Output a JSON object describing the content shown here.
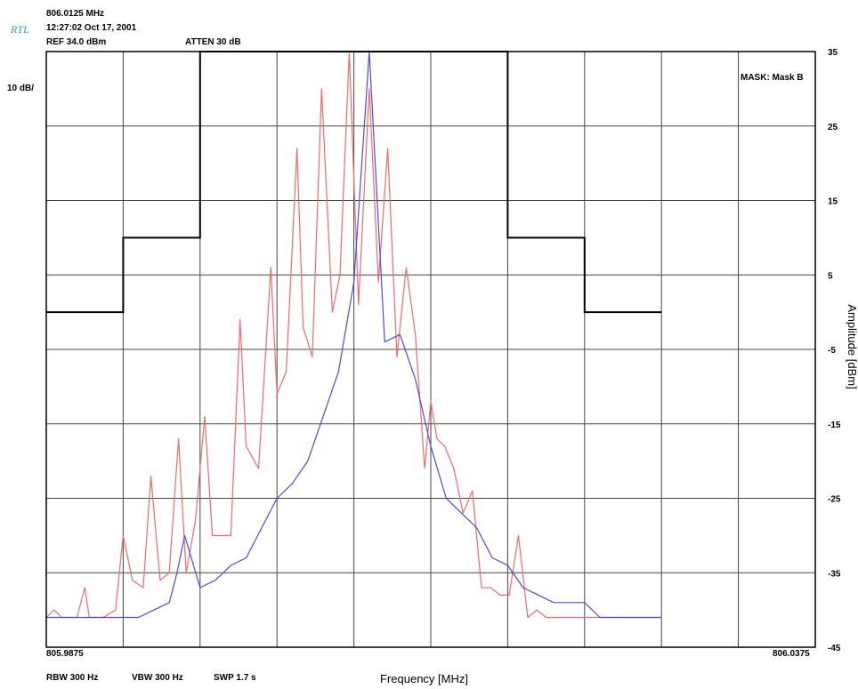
{
  "header": {
    "center_freq": "806.0125 MHz",
    "logo": "RTL",
    "datetime": "12:27:02 Oct 17, 2001",
    "ref": "REF 34.0 dBm",
    "atten": "ATTEN 30 dB",
    "scale": "10 dB/",
    "mask": "MASK: Mask B"
  },
  "footer": {
    "rbw": "RBW 300 Hz",
    "vbw": "VBW 300 Hz",
    "swp": "SWP 1.7 s"
  },
  "colors": {
    "red_trace": "#f06a6a",
    "blue_trace": "#4a4ae6",
    "mask": "#000000",
    "grid": "#444444"
  },
  "chart_data": {
    "type": "line",
    "xlabel": "Frequency [MHz]",
    "ylabel": "Amplitude [dBm]",
    "x_start_label": "805.9875",
    "x_end_label": "806.0375",
    "xlim": [
      805.9875,
      806.0375
    ],
    "ylim": [
      -45,
      35
    ],
    "y_ticks": [
      35,
      25,
      15,
      5,
      -5,
      -15,
      -25,
      -35,
      -45
    ],
    "x_divisions": 10,
    "grid": true,
    "mask": {
      "x": [
        805.9875,
        805.9925,
        805.9925,
        805.9975,
        805.9975,
        806.0175,
        806.0175,
        806.0225,
        806.0225,
        806.0275
      ],
      "y": [
        0,
        0,
        10,
        10,
        35,
        35,
        10,
        10,
        0,
        0
      ]
    },
    "series": [
      {
        "x": [
          805.9875,
          805.988,
          805.9885,
          805.9895,
          805.99,
          805.9903,
          805.9906,
          805.9912,
          805.992,
          805.9925,
          805.9931,
          805.9938,
          805.9943,
          805.9949,
          805.9955,
          805.9961,
          805.9966,
          805.9972,
          805.9978,
          805.9983,
          805.999,
          805.9995,
          806.0001,
          806.0005,
          806.0013,
          806.0021,
          806.0025,
          806.0031,
          806.0038,
          806.0042,
          806.0048,
          806.0054,
          806.0061,
          806.0066,
          806.0072,
          806.0078,
          806.0085,
          806.0091,
          806.0097,
          806.0103,
          806.0109,
          806.0115,
          806.0121,
          806.0125,
          806.0129,
          806.0134,
          806.014,
          806.0146,
          806.0152,
          806.0158,
          806.0164,
          806.017,
          806.0176,
          806.0182,
          806.0188,
          806.0194,
          806.02,
          806.0206,
          806.0212,
          806.0218,
          806.0224,
          806.023,
          806.0236,
          806.0242,
          806.0248,
          806.0254,
          806.026,
          806.0266,
          806.0272,
          806.0275
        ],
        "y": [
          -41,
          -40,
          -41,
          -41,
          -37,
          -41,
          -41,
          -41,
          -40,
          -30,
          -36,
          -37,
          -22,
          -36,
          -35,
          -17,
          -35,
          -28,
          -14,
          -30,
          -30,
          -30,
          -1,
          -18,
          -21,
          6,
          -11,
          -8,
          22,
          -2,
          -6,
          30,
          0,
          5,
          35,
          1,
          30,
          4,
          22,
          -6,
          6,
          -3,
          -21,
          -12,
          -17,
          -18,
          -21,
          -27,
          -24,
          -37,
          -37,
          -38,
          -38,
          -30,
          -41,
          -40,
          -41,
          -41,
          -41,
          -41,
          -41,
          -41,
          -41,
          -41,
          -41,
          -41,
          -41,
          -41,
          -41,
          -41
        ]
      },
      {
        "x": [
          805.9875,
          805.99,
          805.9925,
          805.9935,
          805.9945,
          805.9955,
          805.996,
          805.9965,
          805.9975,
          805.9985,
          805.9995,
          806.0005,
          806.0015,
          806.0025,
          806.0035,
          806.0045,
          806.0055,
          806.0065,
          806.0075,
          806.0085,
          806.0095,
          806.0105,
          806.0115,
          806.0125,
          806.0135,
          806.0145,
          806.0155,
          806.0165,
          806.0175,
          806.0185,
          806.0195,
          806.0205,
          806.0215,
          806.0225,
          806.0235,
          806.0245,
          806.0255,
          806.0265,
          806.0275
        ],
        "y": [
          -41,
          -41,
          -41,
          -41,
          -40,
          -39,
          -35,
          -30,
          -37,
          -36,
          -34,
          -33,
          -29,
          -25,
          -23,
          -20,
          -14,
          -8,
          4,
          35,
          -4,
          -3,
          -9,
          -18,
          -25,
          -27,
          -29,
          -33,
          -34,
          -37,
          -38,
          -39,
          -39,
          -39,
          -41,
          -41,
          -41,
          -41,
          -41
        ]
      }
    ]
  }
}
